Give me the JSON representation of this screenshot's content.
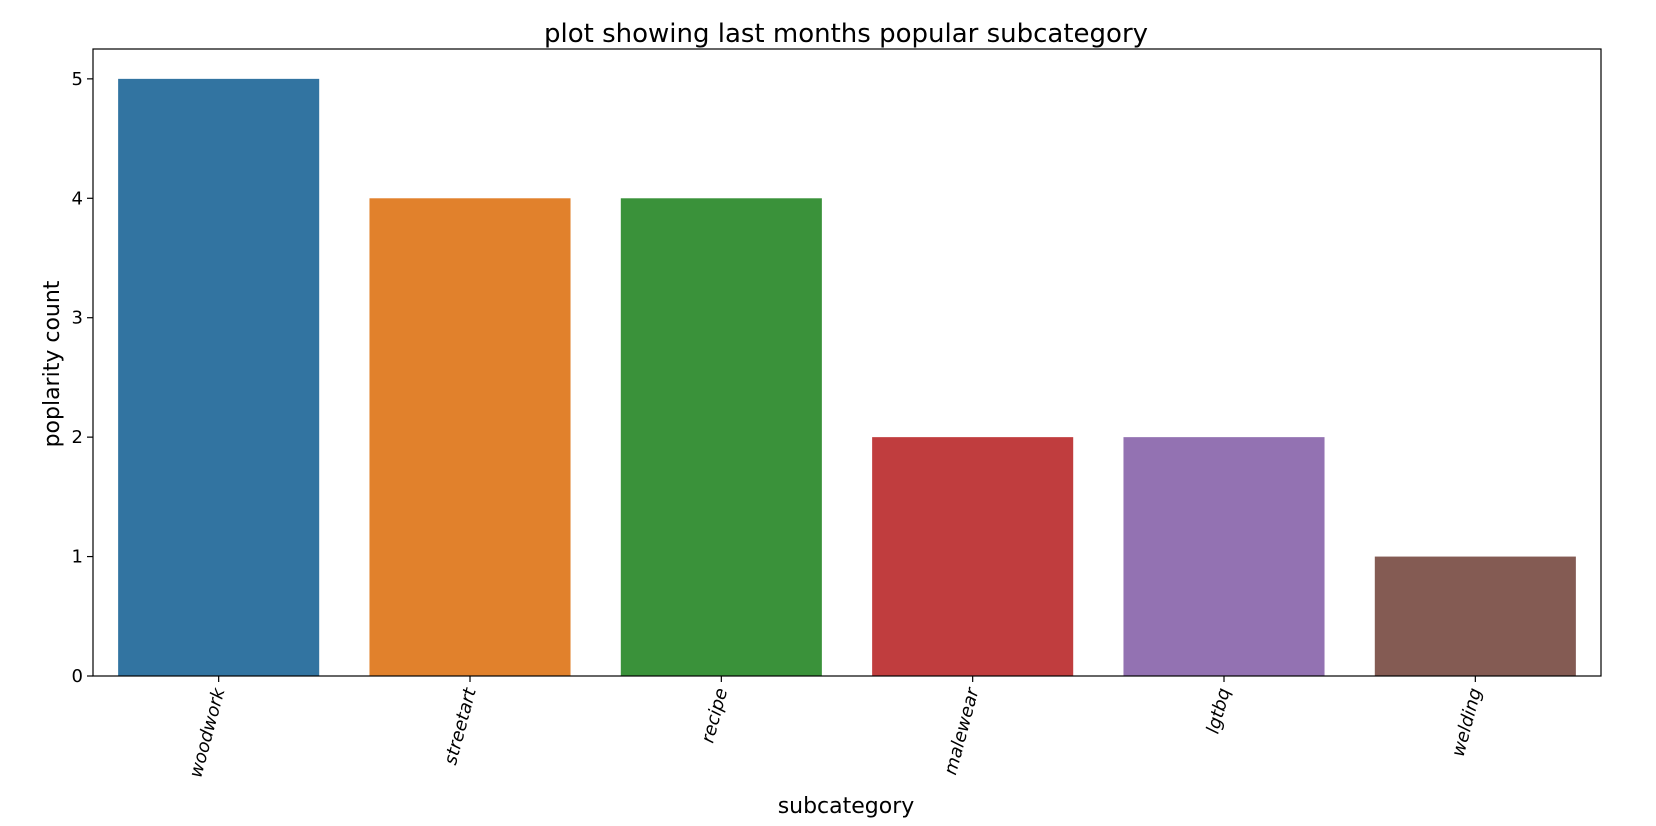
{
  "chart_data": {
    "type": "bar",
    "title": "plot showing last months popular subcategory",
    "xlabel": "subcategory",
    "ylabel": "poplarity count",
    "categories": [
      "woodwork",
      "streetart",
      "recipe",
      "malewear",
      "lgtbq",
      "welding"
    ],
    "values": [
      5,
      4,
      4,
      2,
      2,
      1
    ],
    "colors": [
      "#3274a1",
      "#e1812c",
      "#3a923a",
      "#c03d3e",
      "#9372b2",
      "#845b53"
    ],
    "ylim": [
      0,
      5.25
    ],
    "yticks": [
      "0",
      "1",
      "2",
      "3",
      "4",
      "5"
    ],
    "grid": false,
    "legend": "none"
  }
}
